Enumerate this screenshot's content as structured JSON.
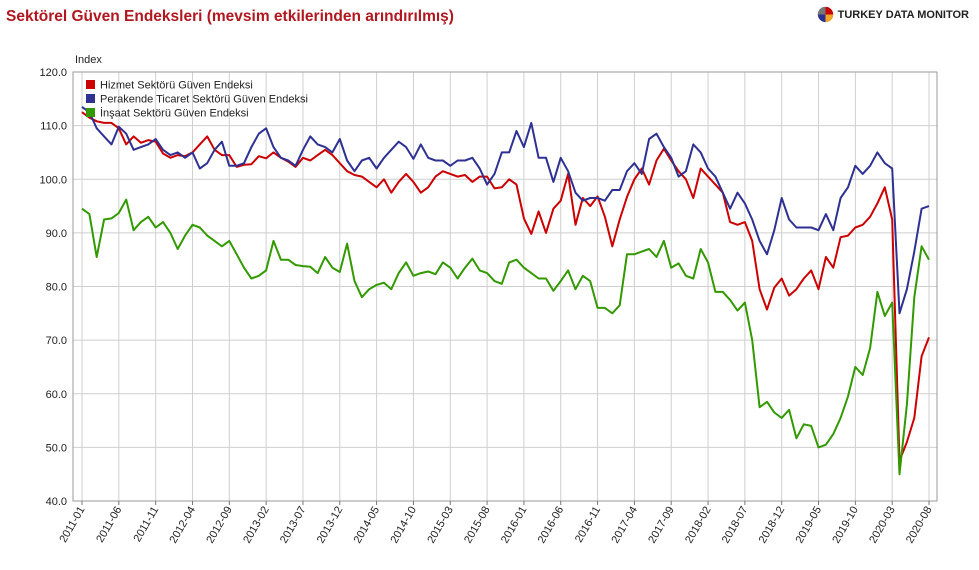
{
  "header": {
    "title": "Sektörel Güven Endeksleri (mevsim etkilerinden arındırılmış)",
    "brand": "TURKEY DATA MONITOR",
    "brand_icon": "pie-chart-logo-icon"
  },
  "chart_data": {
    "type": "line",
    "ylabel": "Index",
    "ylim": [
      40,
      120
    ],
    "yticks": [
      "40.0",
      "50.0",
      "60.0",
      "70.0",
      "80.0",
      "90.0",
      "100.0",
      "110.0",
      "120.0"
    ],
    "x_tick_labels": [
      "2011-01",
      "2011-06",
      "2011-11",
      "2012-04",
      "2012-09",
      "2013-02",
      "2013-07",
      "2013-12",
      "2014-05",
      "2014-10",
      "2015-03",
      "2015-08",
      "2016-01",
      "2016-06",
      "2016-11",
      "2017-04",
      "2017-09",
      "2018-02",
      "2018-07",
      "2018-12",
      "2019-05",
      "2019-10",
      "2020-03",
      "2020-08"
    ],
    "x_start": "2011-01",
    "x_end": "2020-08",
    "grid": true,
    "legend_position": "top-left",
    "series": [
      {
        "name": "Hizmet Sektörü Güven Endeksi",
        "color": "#cc0000",
        "values": [
          112.5,
          111.5,
          110.8,
          110.5,
          110.5,
          109.5,
          106.5,
          108.0,
          106.8,
          107.3,
          107.0,
          104.8,
          104.0,
          104.5,
          104.3,
          105.0,
          106.5,
          108.0,
          105.5,
          104.5,
          104.5,
          102.3,
          102.7,
          102.8,
          104.3,
          103.9,
          105.0,
          104.0,
          103.3,
          102.3,
          104.0,
          103.5,
          104.5,
          105.5,
          104.5,
          103.0,
          101.5,
          100.8,
          100.5,
          99.5,
          98.5,
          100.0,
          97.5,
          99.5,
          101.0,
          99.5,
          97.5,
          98.5,
          100.5,
          101.5,
          101.0,
          100.5,
          100.8,
          99.5,
          100.5,
          100.5,
          98.3,
          98.5,
          100.0,
          99.0,
          92.7,
          89.8,
          94.0,
          90.0,
          94.5,
          96.0,
          101.0,
          91.5,
          96.5,
          95.0,
          96.8,
          93.0,
          87.5,
          92.5,
          96.7,
          100.0,
          102.0,
          99.0,
          103.5,
          105.7,
          103.5,
          101.5,
          100.0,
          96.5,
          102.0,
          100.5,
          99.0,
          97.5,
          92.0,
          91.5,
          92.0,
          88.5,
          79.5,
          75.7,
          79.8,
          81.5,
          78.3,
          79.5,
          81.5,
          83.0,
          79.5,
          85.5,
          83.5,
          89.2,
          89.5,
          91.0,
          91.5,
          93.0,
          95.5,
          98.5,
          92.5,
          47.5,
          51.0,
          55.5,
          67.0,
          70.5
        ]
      },
      {
        "name": "Perakende Ticaret Sektörü Güven Endeksi",
        "color": "#2e3192",
        "values": [
          113.5,
          112.5,
          109.5,
          108.0,
          106.5,
          109.8,
          108.5,
          105.5,
          106.0,
          106.5,
          107.5,
          105.5,
          104.5,
          105.0,
          104.0,
          105.0,
          102.0,
          103.0,
          105.5,
          107.0,
          102.5,
          102.5,
          103.0,
          106.0,
          108.5,
          109.5,
          106.0,
          104.0,
          103.5,
          102.5,
          105.5,
          108.0,
          106.5,
          106.0,
          105.0,
          107.5,
          103.5,
          101.5,
          103.5,
          104.0,
          102.0,
          104.0,
          105.5,
          107.0,
          106.0,
          103.8,
          106.5,
          104.0,
          103.5,
          103.5,
          102.5,
          103.5,
          103.5,
          104.0,
          102.0,
          99.0,
          101.0,
          105.0,
          105.0,
          109.0,
          106.0,
          110.5,
          104.0,
          104.0,
          99.5,
          104.0,
          101.5,
          97.5,
          96.0,
          96.5,
          96.5,
          96.0,
          98.0,
          98.0,
          101.5,
          103.0,
          101.0,
          107.5,
          108.5,
          106.0,
          104.0,
          100.5,
          101.5,
          106.5,
          105.0,
          102.0,
          100.5,
          97.5,
          94.5,
          97.5,
          95.5,
          92.5,
          88.5,
          86.0,
          90.5,
          96.5,
          92.5,
          91.0,
          91.0,
          91.0,
          90.5,
          93.5,
          90.5,
          96.5,
          98.5,
          102.5,
          101.0,
          102.5,
          105.0,
          103.0,
          102.0,
          75.0,
          79.5,
          86.5,
          94.5,
          95.0
        ]
      },
      {
        "name": "İnşaat Sektörü Güven Endeksi",
        "color": "#339900",
        "values": [
          94.5,
          93.5,
          85.5,
          92.5,
          92.7,
          93.7,
          96.2,
          90.5,
          92.0,
          93.0,
          91.0,
          92.0,
          90.0,
          87.0,
          89.5,
          91.5,
          91.0,
          89.5,
          88.5,
          87.5,
          88.5,
          86.0,
          83.5,
          81.5,
          82.0,
          83.0,
          88.5,
          85.0,
          85.0,
          84.0,
          83.8,
          83.7,
          82.5,
          85.5,
          83.5,
          82.7,
          88.0,
          81.0,
          78.0,
          79.5,
          80.3,
          80.7,
          79.5,
          82.5,
          84.5,
          82.0,
          82.5,
          82.8,
          82.3,
          84.5,
          83.5,
          81.5,
          83.5,
          85.2,
          83.0,
          82.5,
          81.0,
          80.5,
          84.5,
          85.0,
          83.5,
          82.5,
          81.5,
          81.5,
          79.2,
          81.0,
          83.0,
          79.5,
          82.0,
          81.0,
          76.0,
          76.0,
          75.0,
          76.5,
          86.0,
          86.0,
          86.5,
          87.0,
          85.5,
          88.5,
          83.5,
          84.3,
          82.0,
          81.5,
          87.0,
          84.5,
          79.0,
          79.0,
          77.5,
          75.5,
          77.0,
          70.0,
          57.5,
          58.5,
          56.5,
          55.5,
          57.0,
          51.7,
          54.3,
          54.0,
          50.0,
          50.5,
          52.5,
          55.5,
          59.5,
          65.0,
          63.5,
          68.5,
          79.0,
          74.5,
          77.0,
          45.0,
          58.0,
          78.0,
          87.5,
          85.0
        ]
      }
    ]
  }
}
